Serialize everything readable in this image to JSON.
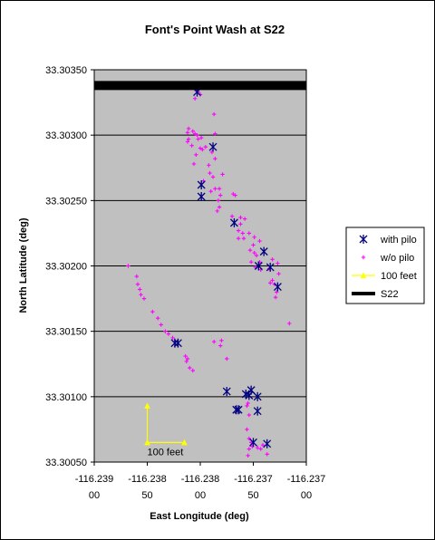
{
  "chart_data": {
    "type": "scatter",
    "title": "Font's Point Wash at S22",
    "xlabel": "East Longitude (deg)",
    "ylabel": "North Latitude (deg)",
    "xlim": [
      -116.239,
      -116.237
    ],
    "ylim": [
      33.3005,
      33.3035
    ],
    "x_tick_labels": [
      [
        "-116.239",
        "00"
      ],
      [
        "-116.238",
        "50"
      ],
      [
        "-116.238",
        "00"
      ],
      [
        "-116.237",
        "50"
      ],
      [
        "-116.237",
        "00"
      ]
    ],
    "y_tick_labels": [
      "33.30350",
      "33.30300",
      "33.30250",
      "33.30200",
      "33.30150",
      "33.30100",
      "33.30050"
    ],
    "y_ticks": [
      33.3035,
      33.303,
      33.3025,
      33.302,
      33.3015,
      33.301,
      33.3005
    ],
    "x_ticks": [
      -116.239,
      -116.2385,
      -116.238,
      -116.2375,
      -116.237
    ],
    "grid": "horizontal",
    "plot_background": "#c0c0c0",
    "legend_position": "right",
    "series": [
      {
        "name": "with pilo",
        "marker": "asterisk",
        "color": "#000080",
        "points": [
          [
            -116.23803,
            33.30333
          ],
          [
            -116.23788,
            33.30291
          ],
          [
            -116.23799,
            33.30262
          ],
          [
            -116.23799,
            33.30253
          ],
          [
            -116.23768,
            33.30233
          ],
          [
            -116.2374,
            33.30211
          ],
          [
            -116.23745,
            33.302
          ],
          [
            -116.23734,
            33.30199
          ],
          [
            -116.23727,
            33.30184
          ],
          [
            -116.23824,
            33.30141
          ],
          [
            -116.23821,
            33.30141
          ],
          [
            -116.23775,
            33.30104
          ],
          [
            -116.23752,
            33.30105
          ],
          [
            -116.23757,
            33.30102
          ],
          [
            -116.23754,
            33.30101
          ],
          [
            -116.23746,
            33.301
          ],
          [
            -116.23764,
            33.3009
          ],
          [
            -116.23766,
            33.3009
          ],
          [
            -116.23746,
            33.30089
          ],
          [
            -116.2375,
            33.30065
          ],
          [
            -116.23737,
            33.30064
          ]
        ]
      },
      {
        "name": "w/o pilo",
        "marker": "plus",
        "color": "#ff00ff",
        "points": [
          [
            -116.23805,
            33.30335
          ],
          [
            -116.23802,
            33.30333
          ],
          [
            -116.238,
            33.30331
          ],
          [
            -116.23805,
            33.30328
          ],
          [
            -116.23787,
            33.30316
          ],
          [
            -116.23811,
            33.30305
          ],
          [
            -116.23812,
            33.30302
          ],
          [
            -116.23807,
            33.30303
          ],
          [
            -116.23805,
            33.30301
          ],
          [
            -116.23803,
            33.303
          ],
          [
            -116.23799,
            33.30298
          ],
          [
            -116.23802,
            33.30297
          ],
          [
            -116.23811,
            33.30297
          ],
          [
            -116.23812,
            33.30295
          ],
          [
            -116.23808,
            33.30292
          ],
          [
            -116.238,
            33.3029
          ],
          [
            -116.23798,
            33.30289
          ],
          [
            -116.23795,
            33.30291
          ],
          [
            -116.23786,
            33.30301
          ],
          [
            -116.23789,
            33.30287
          ],
          [
            -116.23804,
            33.30285
          ],
          [
            -116.23786,
            33.30282
          ],
          [
            -116.23806,
            33.30278
          ],
          [
            -116.23792,
            33.30277
          ],
          [
            -116.23791,
            33.30271
          ],
          [
            -116.23779,
            33.3027
          ],
          [
            -116.23788,
            33.30268
          ],
          [
            -116.23797,
            33.30265
          ],
          [
            -116.23786,
            33.30259
          ],
          [
            -116.23782,
            33.30259
          ],
          [
            -116.2379,
            33.30257
          ],
          [
            -116.23781,
            33.30254
          ],
          [
            -116.23769,
            33.30255
          ],
          [
            -116.23767,
            33.30254
          ],
          [
            -116.23783,
            33.3025
          ],
          [
            -116.23782,
            33.30245
          ],
          [
            -116.23784,
            33.30242
          ],
          [
            -116.2377,
            33.30238
          ],
          [
            -116.23762,
            33.30237
          ],
          [
            -116.23758,
            33.30236
          ],
          [
            -116.23762,
            33.30232
          ],
          [
            -116.23764,
            33.30227
          ],
          [
            -116.2376,
            33.30225
          ],
          [
            -116.23754,
            33.30225
          ],
          [
            -116.23759,
            33.30221
          ],
          [
            -116.23764,
            33.30221
          ],
          [
            -116.23749,
            33.30222
          ],
          [
            -116.23744,
            33.30219
          ],
          [
            -116.2375,
            33.30216
          ],
          [
            -116.23753,
            33.30212
          ],
          [
            -116.23749,
            33.3021
          ],
          [
            -116.23747,
            33.30208
          ],
          [
            -116.23752,
            33.30203
          ],
          [
            -116.23744,
            33.30203
          ],
          [
            -116.23748,
            33.30199
          ],
          [
            -116.23743,
            33.30197
          ],
          [
            -116.23735,
            33.30198
          ],
          [
            -116.23732,
            33.30205
          ],
          [
            -116.23727,
            33.30202
          ],
          [
            -116.23726,
            33.30194
          ],
          [
            -116.23732,
            33.30189
          ],
          [
            -116.23734,
            33.30187
          ],
          [
            -116.2373,
            33.30186
          ],
          [
            -116.23728,
            33.3018
          ],
          [
            -116.23729,
            33.30176
          ],
          [
            -116.23716,
            33.30156
          ],
          [
            -116.23868,
            33.302
          ],
          [
            -116.2386,
            33.30192
          ],
          [
            -116.23859,
            33.30186
          ],
          [
            -116.23857,
            33.30182
          ],
          [
            -116.23856,
            33.30178
          ],
          [
            -116.23853,
            33.30175
          ],
          [
            -116.23845,
            33.30165
          ],
          [
            -116.2384,
            33.3016
          ],
          [
            -116.23837,
            33.30155
          ],
          [
            -116.23833,
            33.3015
          ],
          [
            -116.2383,
            33.30148
          ],
          [
            -116.23826,
            33.30145
          ],
          [
            -116.23824,
            33.30142
          ],
          [
            -116.23814,
            33.30131
          ],
          [
            -116.23812,
            33.30129
          ],
          [
            -116.23813,
            33.30127
          ],
          [
            -116.2381,
            33.30122
          ],
          [
            -116.23807,
            33.3012
          ],
          [
            -116.23787,
            33.30142
          ],
          [
            -116.2378,
            33.30143
          ],
          [
            -116.23781,
            33.30139
          ],
          [
            -116.23775,
            33.30129
          ],
          [
            -116.23756,
            33.30093
          ],
          [
            -116.23755,
            33.30095
          ],
          [
            -116.23754,
            33.30086
          ],
          [
            -116.23756,
            33.30075
          ],
          [
            -116.23754,
            33.30068
          ],
          [
            -116.23752,
            33.30065
          ],
          [
            -116.23751,
            33.30062
          ],
          [
            -116.23754,
            33.3006
          ],
          [
            -116.23746,
            33.30061
          ],
          [
            -116.23743,
            33.3006
          ],
          [
            -116.23737,
            33.30056
          ],
          [
            -116.23755,
            33.30055
          ],
          [
            -116.23741,
            33.30063
          ]
        ]
      },
      {
        "name": "100 feet",
        "marker": "triangle",
        "color": "#ffff00",
        "points": [
          [
            -116.2385,
            33.30093
          ],
          [
            -116.2385,
            33.30065
          ],
          [
            -116.23815,
            33.30065
          ]
        ]
      },
      {
        "name": "S22",
        "marker": "none",
        "color": "#000000",
        "line_width": "thick",
        "points": [
          [
            -116.239,
            33.30338
          ],
          [
            -116.237,
            33.30338
          ]
        ]
      }
    ],
    "annotations": [
      {
        "text": "100 feet",
        "x": -116.2385,
        "y": 33.30058
      }
    ]
  }
}
